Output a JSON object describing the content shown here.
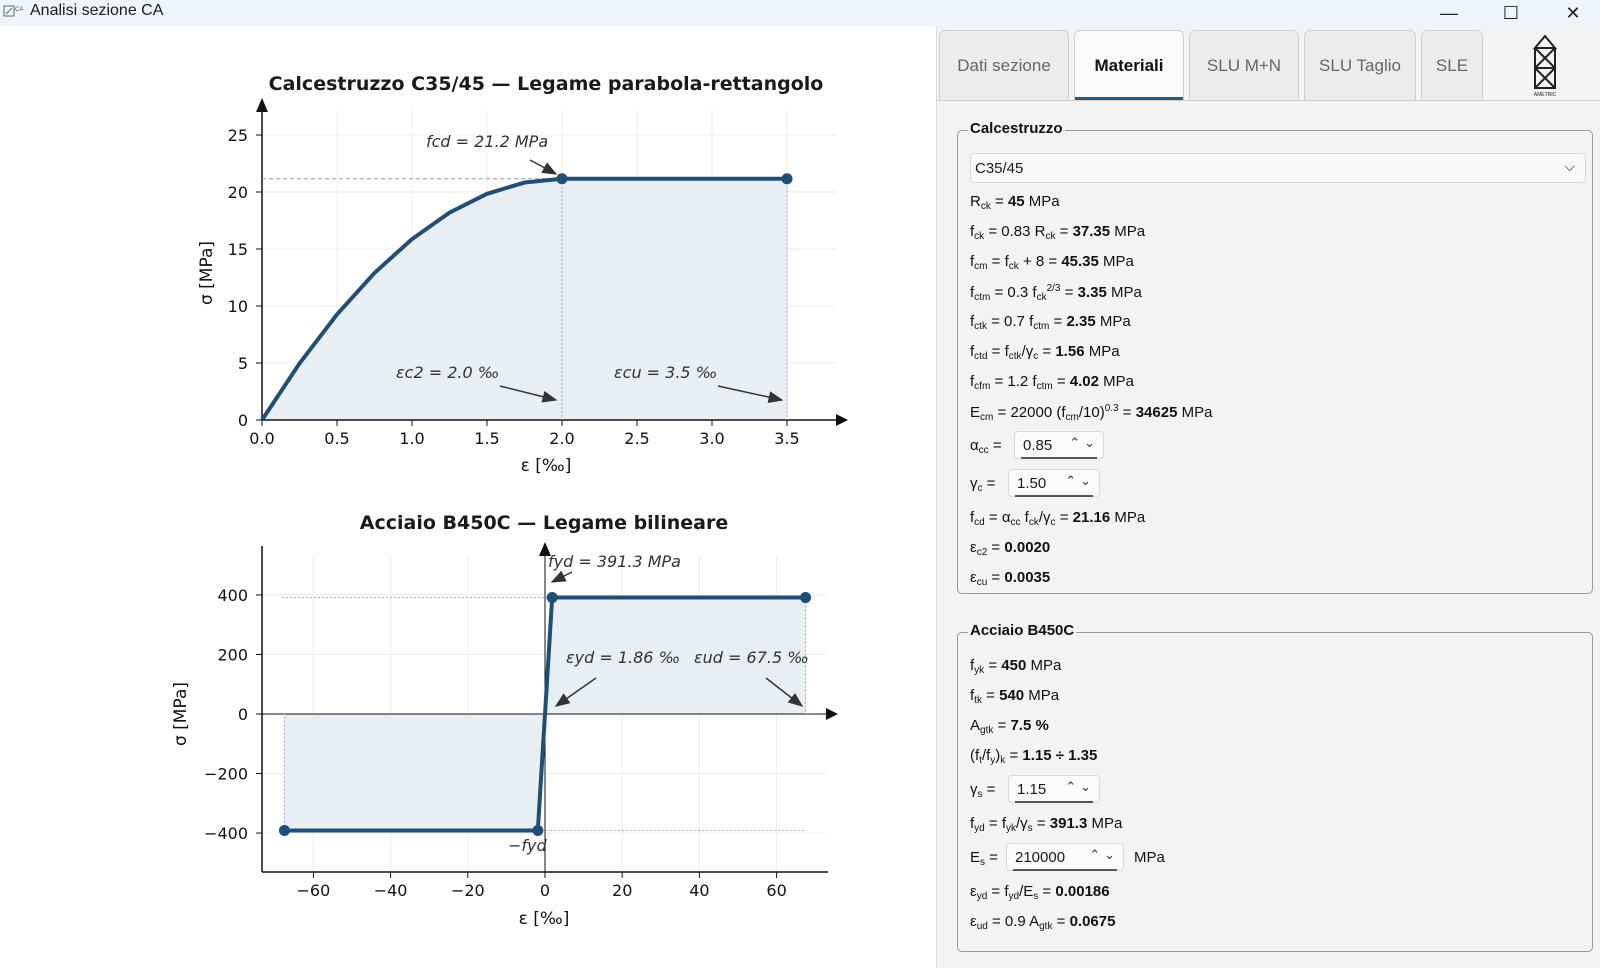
{
  "window": {
    "title": "Analisi sezione CA",
    "icon": "ca-app-icon",
    "minimize": "—",
    "maximize": "☐",
    "close": "✕"
  },
  "tabs": [
    "Dati sezione",
    "Materiali",
    "SLU M+N",
    "SLU Taglio",
    "SLE"
  ],
  "active_tab": "Materiali",
  "logo_text": "AMETRIC",
  "concrete": {
    "group_title": "Calcestruzzo",
    "class_select": "C35/45",
    "rck": "45",
    "fck": "37.35",
    "fcm": "45.35",
    "fctm": "3.35",
    "fctk": "2.35",
    "fctd": "1.56",
    "fcfm": "4.02",
    "ecm": "34625",
    "alpha_cc": "0.85",
    "gamma_c": "1.50",
    "fcd": "21.16",
    "ec2": "0.0020",
    "ecu": "0.0035"
  },
  "steel": {
    "group_title": "Acciaio B450C",
    "fyk": "450",
    "ftk": "540",
    "agtk": "7.5 %",
    "ratio": "1.15 ÷ 1.35",
    "gamma_s": "1.15",
    "fyd": "391.3",
    "es": "210000",
    "eyd": "0.00186",
    "eud": "0.0675"
  },
  "chart_data": [
    {
      "type": "line",
      "title": "Calcestruzzo C35/45  —  Legame parabola-rettangolo",
      "xlabel": "ε  [‰]",
      "ylabel": "σ  [MPa]",
      "xlim": [
        0,
        3.8
      ],
      "ylim": [
        0,
        25
      ],
      "xticks": [
        "0.0",
        "0.5",
        "1.0",
        "1.5",
        "2.0",
        "2.5",
        "3.0",
        "3.5"
      ],
      "yticks": [
        "0",
        "5",
        "10",
        "15",
        "20",
        "25"
      ],
      "x": [
        0,
        0.25,
        0.5,
        0.75,
        1.0,
        1.25,
        1.5,
        1.75,
        2.0,
        3.5
      ],
      "y": [
        0,
        4.96,
        9.26,
        12.9,
        15.87,
        18.19,
        19.84,
        20.83,
        21.16,
        21.16
      ],
      "markers": [
        [
          2.0,
          21.16
        ],
        [
          3.5,
          21.16
        ]
      ],
      "annotations": [
        "fcd = 21.2 MPa",
        "εc2 = 2.0 ‰",
        "εcu = 3.5 ‰"
      ],
      "grid": true
    },
    {
      "type": "line",
      "title": "Acciaio B450C  —  Legame bilineare",
      "xlabel": "ε  [‰]",
      "ylabel": "σ  [MPa]",
      "xlim": [
        -72,
        72
      ],
      "ylim": [
        -520,
        520
      ],
      "xticks": [
        "−60",
        "−40",
        "−20",
        "0",
        "20",
        "40",
        "60"
      ],
      "yticks": [
        "−400",
        "−200",
        "0",
        "200",
        "400"
      ],
      "x": [
        -67.5,
        -1.86,
        1.86,
        67.5
      ],
      "y": [
        -391.3,
        -391.3,
        391.3,
        391.3
      ],
      "markers": [
        [
          -67.5,
          -391.3
        ],
        [
          -1.86,
          -391.3
        ],
        [
          1.86,
          391.3
        ],
        [
          67.5,
          391.3
        ]
      ],
      "annotations": [
        "fyd = 391.3 MPa",
        "εyd = 1.86 ‰",
        "εud = 67.5 ‰",
        "−fyd"
      ],
      "grid": true
    }
  ]
}
